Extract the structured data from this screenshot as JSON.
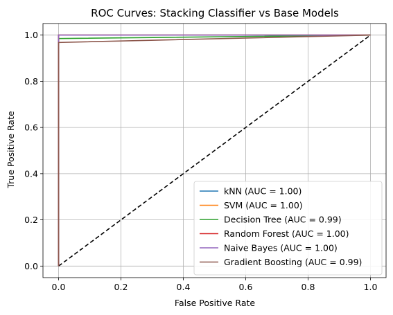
{
  "chart_data": {
    "type": "line",
    "title": "ROC Curves: Stacking Classifier vs Base Models",
    "xlabel": "False Positive Rate",
    "ylabel": "True Positive Rate",
    "xlim": [
      -0.05,
      1.05
    ],
    "ylim": [
      -0.05,
      1.05
    ],
    "xticks": [
      0.0,
      0.2,
      0.4,
      0.6,
      0.8,
      1.0
    ],
    "yticks": [
      0.0,
      0.2,
      0.4,
      0.6,
      0.8,
      1.0
    ],
    "xtick_labels": [
      "0.0",
      "0.2",
      "0.4",
      "0.6",
      "0.8",
      "1.0"
    ],
    "ytick_labels": [
      "0.0",
      "0.2",
      "0.4",
      "0.6",
      "0.8",
      "1.0"
    ],
    "grid": true,
    "legend_position": "bottom-right",
    "series": [
      {
        "name": "kNN (AUC = 1.00)",
        "color": "#1f77b4",
        "x": [
          0,
          0,
          1
        ],
        "y": [
          0,
          1.0,
          1.0
        ]
      },
      {
        "name": "SVM (AUC = 1.00)",
        "color": "#ff7f0e",
        "x": [
          0,
          0,
          1
        ],
        "y": [
          0,
          1.0,
          1.0
        ]
      },
      {
        "name": "Decision Tree (AUC = 0.99)",
        "color": "#2ca02c",
        "x": [
          0,
          0,
          1
        ],
        "y": [
          0,
          0.985,
          1.0
        ]
      },
      {
        "name": "Random Forest (AUC = 1.00)",
        "color": "#d62728",
        "x": [
          0,
          0,
          1
        ],
        "y": [
          0,
          1.0,
          1.0
        ]
      },
      {
        "name": "Naive Bayes (AUC = 1.00)",
        "color": "#9467bd",
        "x": [
          0,
          0,
          1
        ],
        "y": [
          0,
          1.0,
          1.0
        ]
      },
      {
        "name": "Gradient Boosting (AUC = 0.99)",
        "color": "#8c564b",
        "x": [
          0,
          0,
          1
        ],
        "y": [
          0,
          0.968,
          1.0
        ]
      }
    ],
    "reference_line": {
      "x": [
        0,
        1
      ],
      "y": [
        0,
        1
      ],
      "color": "#000000",
      "style": "dashed"
    }
  }
}
